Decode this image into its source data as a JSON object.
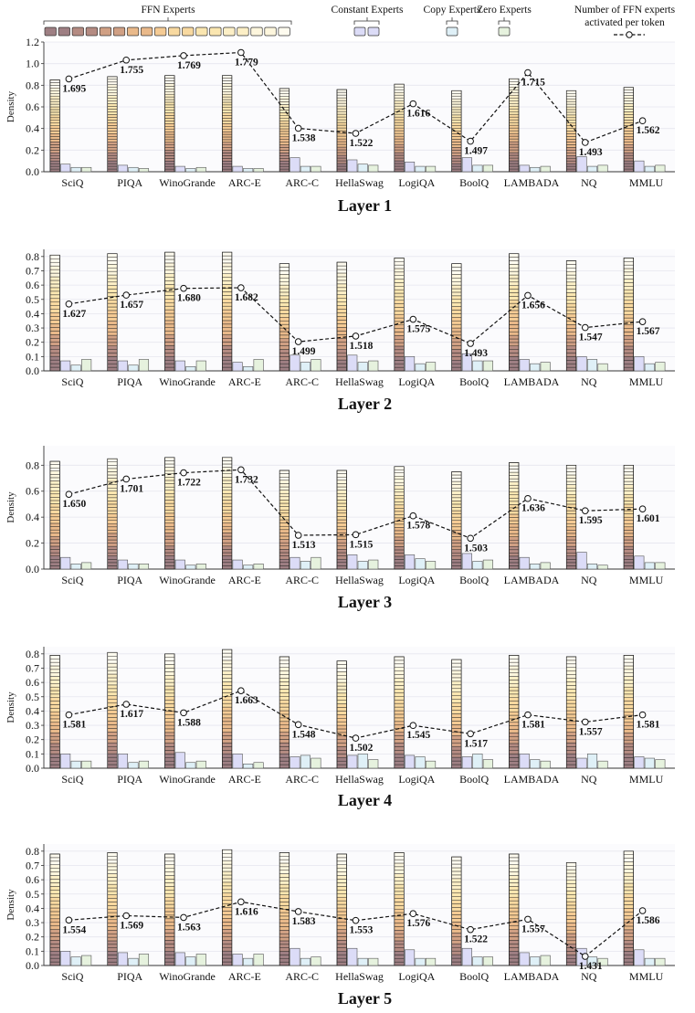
{
  "legend": {
    "ffn": "FFN Experts",
    "constant": "Constant Experts",
    "copy": "Copy Experts",
    "zero": "Zero Experts",
    "line_line1": "Number of FFN experts",
    "line_line2": "activated per token"
  },
  "colors": {
    "ffn_stack": [
      "#9e7f83",
      "#b48b82",
      "#d0a084",
      "#e9b98a",
      "#f5cb94",
      "#f8d9a0",
      "#fae6b0",
      "#fcefc6",
      "#fdf6dd",
      "#fefbef"
    ],
    "constant": "#dcdcf7",
    "copy": "#dff0f7",
    "zero": "#e6f2de",
    "line": "#111111"
  },
  "chart_data": [
    {
      "type": "bar",
      "title": "Layer 1",
      "ylabel": "Density",
      "ylim": [
        0,
        1.2
      ],
      "yticks": [
        "0.0",
        "0.2",
        "0.4",
        "0.6",
        "0.8",
        "1.0",
        "1.2"
      ],
      "categories": [
        "SciQ",
        "PIQA",
        "WinoGrande",
        "ARC-E",
        "ARC-C",
        "HellaSwag",
        "LogiQA",
        "BoolQ",
        "LAMBADA",
        "NQ",
        "MMLU"
      ],
      "series": [
        {
          "name": "FFN Experts",
          "values": [
            0.85,
            0.88,
            0.89,
            0.89,
            0.77,
            0.76,
            0.81,
            0.75,
            0.86,
            0.75,
            0.78
          ]
        },
        {
          "name": "Constant Experts",
          "values": [
            0.07,
            0.06,
            0.05,
            0.05,
            0.13,
            0.11,
            0.09,
            0.13,
            0.06,
            0.14,
            0.1
          ]
        },
        {
          "name": "Copy Experts",
          "values": [
            0.04,
            0.04,
            0.03,
            0.03,
            0.05,
            0.07,
            0.05,
            0.06,
            0.04,
            0.05,
            0.05
          ]
        },
        {
          "name": "Zero Experts",
          "values": [
            0.04,
            0.03,
            0.04,
            0.03,
            0.05,
            0.06,
            0.05,
            0.06,
            0.05,
            0.06,
            0.06
          ]
        }
      ],
      "line": {
        "name": "Number of FFN experts activated per token",
        "values": [
          1.695,
          1.755,
          1.769,
          1.779,
          1.538,
          1.522,
          1.616,
          1.497,
          1.715,
          1.493,
          1.562
        ],
        "labels": [
          "1.695",
          "1.755",
          "1.769",
          "1.779",
          "1.538",
          "1.522",
          "1.616",
          "1.497",
          "1.715",
          "1.493",
          "1.562"
        ]
      }
    },
    {
      "type": "bar",
      "title": "Layer 2",
      "ylabel": "",
      "ylim": [
        0,
        0.85
      ],
      "yticks": [
        "0.0",
        "0.1",
        "0.2",
        "0.3",
        "0.4",
        "0.5",
        "0.6",
        "0.7",
        "0.8"
      ],
      "categories": [
        "SciQ",
        "PIQA",
        "WinoGrande",
        "ARC-E",
        "ARC-C",
        "HellaSwag",
        "LogiQA",
        "BoolQ",
        "LAMBADA",
        "NQ",
        "MMLU"
      ],
      "series": [
        {
          "name": "FFN Experts",
          "values": [
            0.81,
            0.82,
            0.83,
            0.83,
            0.75,
            0.76,
            0.79,
            0.75,
            0.82,
            0.77,
            0.79
          ]
        },
        {
          "name": "Constant Experts",
          "values": [
            0.07,
            0.07,
            0.07,
            0.06,
            0.11,
            0.11,
            0.1,
            0.12,
            0.08,
            0.1,
            0.1
          ]
        },
        {
          "name": "Copy Experts",
          "values": [
            0.04,
            0.04,
            0.03,
            0.03,
            0.06,
            0.06,
            0.05,
            0.07,
            0.05,
            0.08,
            0.05
          ]
        },
        {
          "name": "Zero Experts",
          "values": [
            0.08,
            0.08,
            0.07,
            0.08,
            0.08,
            0.07,
            0.06,
            0.07,
            0.06,
            0.05,
            0.06
          ]
        }
      ],
      "line": {
        "name": "Number of FFN experts activated per token",
        "values": [
          1.627,
          1.657,
          1.68,
          1.682,
          1.499,
          1.518,
          1.575,
          1.493,
          1.656,
          1.547,
          1.567
        ],
        "labels": [
          "1.627",
          "1.657",
          "1.680",
          "1.682",
          "1.499",
          "1.518",
          "1.575",
          "1.493",
          "1.656",
          "1.547",
          "1.567"
        ]
      }
    },
    {
      "type": "bar",
      "title": "Layer 3",
      "ylabel": "Density",
      "ylim": [
        0,
        0.95
      ],
      "yticks": [
        "0.0",
        "0.2",
        "0.4",
        "0.6",
        "0.8"
      ],
      "categories": [
        "SciQ",
        "PIQA",
        "WinoGrande",
        "ARC-E",
        "ARC-C",
        "HellaSwag",
        "LogiQA",
        "BoolQ",
        "LAMBADA",
        "NQ",
        "MMLU"
      ],
      "series": [
        {
          "name": "FFN Experts",
          "values": [
            0.83,
            0.85,
            0.86,
            0.86,
            0.76,
            0.76,
            0.79,
            0.75,
            0.82,
            0.8,
            0.8
          ]
        },
        {
          "name": "Constant Experts",
          "values": [
            0.09,
            0.07,
            0.07,
            0.07,
            0.09,
            0.11,
            0.11,
            0.12,
            0.09,
            0.13,
            0.1
          ]
        },
        {
          "name": "Copy Experts",
          "values": [
            0.04,
            0.04,
            0.03,
            0.03,
            0.06,
            0.06,
            0.08,
            0.06,
            0.04,
            0.04,
            0.05
          ]
        },
        {
          "name": "Zero Experts",
          "values": [
            0.05,
            0.04,
            0.04,
            0.04,
            0.09,
            0.07,
            0.06,
            0.07,
            0.05,
            0.03,
            0.05
          ]
        }
      ],
      "line": {
        "name": "Number of FFN experts activated per token",
        "values": [
          1.65,
          1.701,
          1.722,
          1.732,
          1.513,
          1.515,
          1.578,
          1.503,
          1.636,
          1.595,
          1.601
        ],
        "labels": [
          "1.650",
          "1.701",
          "1.722",
          "1.732",
          "1.513",
          "1.515",
          "1.578",
          "1.503",
          "1.636",
          "1.595",
          "1.601"
        ]
      }
    },
    {
      "type": "bar",
      "title": "Layer 4",
      "ylabel": "Density",
      "ylim": [
        0,
        0.85
      ],
      "yticks": [
        "0.0",
        "0.1",
        "0.2",
        "0.3",
        "0.4",
        "0.5",
        "0.6",
        "0.7",
        "0.8"
      ],
      "categories": [
        "SciQ",
        "PIQA",
        "WinoGrande",
        "ARC-E",
        "ARC-C",
        "HellaSwag",
        "LogiQA",
        "BoolQ",
        "LAMBADA",
        "NQ",
        "MMLU"
      ],
      "series": [
        {
          "name": "FFN Experts",
          "values": [
            0.79,
            0.81,
            0.8,
            0.83,
            0.78,
            0.75,
            0.78,
            0.76,
            0.79,
            0.78,
            0.79
          ]
        },
        {
          "name": "Constant Experts",
          "values": [
            0.1,
            0.1,
            0.11,
            0.1,
            0.08,
            0.09,
            0.09,
            0.08,
            0.1,
            0.07,
            0.08
          ]
        },
        {
          "name": "Copy Experts",
          "values": [
            0.05,
            0.04,
            0.04,
            0.03,
            0.09,
            0.1,
            0.08,
            0.1,
            0.06,
            0.1,
            0.07
          ]
        },
        {
          "name": "Zero Experts",
          "values": [
            0.05,
            0.05,
            0.05,
            0.04,
            0.07,
            0.06,
            0.05,
            0.06,
            0.05,
            0.05,
            0.06
          ]
        }
      ],
      "line": {
        "name": "Number of FFN experts activated per token",
        "values": [
          1.581,
          1.617,
          1.588,
          1.663,
          1.548,
          1.502,
          1.545,
          1.517,
          1.581,
          1.557,
          1.581
        ],
        "labels": [
          "1.581",
          "1.617",
          "1.588",
          "1.663",
          "1.548",
          "1.502",
          "1.545",
          "1.517",
          "1.581",
          "1.557",
          "1.581"
        ]
      }
    },
    {
      "type": "bar",
      "title": "Layer 5",
      "ylabel": "Density",
      "ylim": [
        0,
        0.85
      ],
      "yticks": [
        "0.0",
        "0.1",
        "0.2",
        "0.3",
        "0.4",
        "0.5",
        "0.6",
        "0.7",
        "0.8"
      ],
      "categories": [
        "SciQ",
        "PIQA",
        "WinoGrande",
        "ARC-E",
        "ARC-C",
        "HellaSwag",
        "LogiQA",
        "BoolQ",
        "LAMBADA",
        "NQ",
        "MMLU"
      ],
      "series": [
        {
          "name": "FFN Experts",
          "values": [
            0.78,
            0.79,
            0.78,
            0.81,
            0.79,
            0.78,
            0.79,
            0.76,
            0.78,
            0.72,
            0.8
          ]
        },
        {
          "name": "Constant Experts",
          "values": [
            0.1,
            0.09,
            0.09,
            0.08,
            0.12,
            0.12,
            0.11,
            0.12,
            0.09,
            0.12,
            0.11
          ]
        },
        {
          "name": "Copy Experts",
          "values": [
            0.06,
            0.05,
            0.06,
            0.05,
            0.05,
            0.05,
            0.05,
            0.06,
            0.06,
            0.06,
            0.05
          ]
        },
        {
          "name": "Zero Experts",
          "values": [
            0.07,
            0.08,
            0.08,
            0.08,
            0.06,
            0.05,
            0.05,
            0.06,
            0.07,
            0.05,
            0.05
          ]
        }
      ],
      "line": {
        "name": "Number of FFN experts activated per token",
        "values": [
          1.554,
          1.569,
          1.563,
          1.616,
          1.583,
          1.553,
          1.576,
          1.522,
          1.557,
          1.431,
          1.586
        ],
        "labels": [
          "1.554",
          "1.569",
          "1.563",
          "1.616",
          "1.583",
          "1.553",
          "1.576",
          "1.522",
          "1.557",
          "1.431",
          "1.586"
        ]
      }
    }
  ]
}
